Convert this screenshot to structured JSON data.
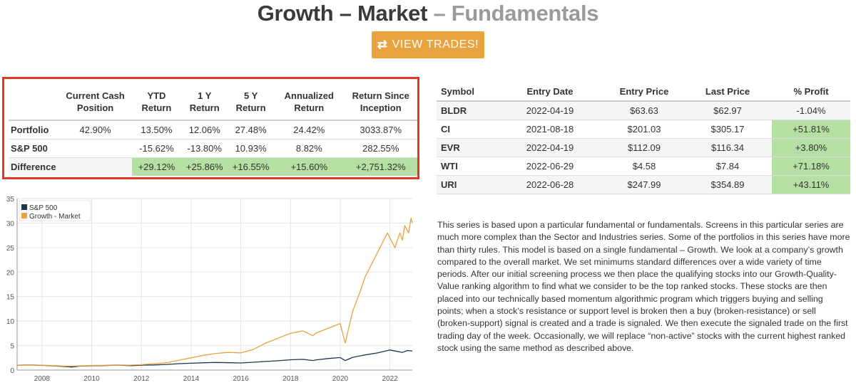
{
  "header": {
    "title_main": "Growth – Market",
    "title_sep": " – ",
    "title_sub": "Fundamentals"
  },
  "view_trades": {
    "icon": "⇄",
    "label": "VIEW TRADES!"
  },
  "stats_table": {
    "columns": [
      "",
      "Current Cash Position",
      "YTD Return",
      "1 Y Return",
      "5 Y Return",
      "Annualized Return",
      "Return Since Inception"
    ],
    "rows": [
      {
        "label": "Portfolio",
        "cells": [
          "42.90%",
          "13.50%",
          "12.06%",
          "27.48%",
          "24.42%",
          "3033.87%"
        ]
      },
      {
        "label": "S&P 500",
        "cells": [
          "",
          "-15.62%",
          "-13.80%",
          "10.93%",
          "8.82%",
          "282.55%"
        ]
      },
      {
        "label": "Difference",
        "cells": [
          "",
          "+29.12%",
          "+25.86%",
          "+16.55%",
          "+15.60%",
          "+2,751.32%"
        ]
      }
    ]
  },
  "trades_table": {
    "columns": [
      "Symbol",
      "Entry Date",
      "Entry Price",
      "Last Price",
      "% Profit"
    ],
    "rows": [
      {
        "symbol": "BLDR",
        "entry_date": "2022-04-19",
        "entry_price": "$63.63",
        "last_price": "$62.97",
        "profit": "-1.04%",
        "positive": false
      },
      {
        "symbol": "CI",
        "entry_date": "2021-08-18",
        "entry_price": "$201.03",
        "last_price": "$305.17",
        "profit": "+51.81%",
        "positive": true
      },
      {
        "symbol": "EVR",
        "entry_date": "2022-04-19",
        "entry_price": "$112.09",
        "last_price": "$116.34",
        "profit": "+3.80%",
        "positive": true
      },
      {
        "symbol": "WTI",
        "entry_date": "2022-06-29",
        "entry_price": "$4.58",
        "last_price": "$7.84",
        "profit": "+71.18%",
        "positive": true
      },
      {
        "symbol": "URI",
        "entry_date": "2022-06-28",
        "entry_price": "$247.99",
        "last_price": "$354.89",
        "profit": "+43.11%",
        "positive": true
      }
    ]
  },
  "description": "This series is based upon a particular fundamental or fundamentals. Screens in this particular series are much more complex than the Sector and Industries series. Some of the portfolios in this series have more than thirty rules. This model is based on a single fundamental – Growth. We look at a company’s growth compared to the overall market. We set minimums standard differences over a wide variety of time periods. After our initial screening process we then place the qualifying stocks into our Growth-Quality-Value ranking algorithm to find what we consider to be the top ranked stocks. These stocks are then placed into our technically based momentum algorithmic program which triggers buying and selling points; when a stock’s resistance or support level is broken then a buy (broken-resistance) or sell (broken-support) signal is created and a trade is signaled. We then execute the signaled trade on the first trading day of the week. Occasionally, we will replace “non-active” stocks with the current highest ranked stock using the same method as described above.",
  "colors": {
    "accent": "#e8a23e",
    "highlight_border": "#e03a25",
    "positive_bg": "#b6dfa4",
    "sp500_line": "#1f3450",
    "growth_line": "#e8a23e"
  },
  "chart_data": {
    "type": "line",
    "ylim": [
      0,
      35
    ],
    "yticks": [
      0,
      5,
      10,
      15,
      20,
      25,
      30,
      35
    ],
    "xlim": [
      2007,
      2022.9
    ],
    "xticks": [
      2008,
      2010,
      2012,
      2014,
      2016,
      2018,
      2020,
      2022
    ],
    "grid": true,
    "legend_position": "top-left",
    "series": [
      {
        "name": "S&P 500",
        "color": "#1f3450",
        "points": [
          [
            2007.0,
            1.0
          ],
          [
            2007.5,
            1.05
          ],
          [
            2008.0,
            0.98
          ],
          [
            2008.5,
            0.85
          ],
          [
            2009.0,
            0.7
          ],
          [
            2009.2,
            0.62
          ],
          [
            2009.5,
            0.8
          ],
          [
            2010.0,
            0.9
          ],
          [
            2010.5,
            0.92
          ],
          [
            2011.0,
            1.02
          ],
          [
            2011.6,
            0.9
          ],
          [
            2012.0,
            1.0
          ],
          [
            2012.5,
            1.05
          ],
          [
            2013.0,
            1.15
          ],
          [
            2013.5,
            1.3
          ],
          [
            2014.0,
            1.4
          ],
          [
            2014.5,
            1.5
          ],
          [
            2015.0,
            1.55
          ],
          [
            2015.6,
            1.5
          ],
          [
            2016.0,
            1.45
          ],
          [
            2016.5,
            1.6
          ],
          [
            2017.0,
            1.75
          ],
          [
            2017.5,
            1.9
          ],
          [
            2018.0,
            2.1
          ],
          [
            2018.5,
            2.2
          ],
          [
            2018.9,
            1.95
          ],
          [
            2019.0,
            2.05
          ],
          [
            2019.5,
            2.35
          ],
          [
            2020.0,
            2.55
          ],
          [
            2020.2,
            1.95
          ],
          [
            2020.5,
            2.6
          ],
          [
            2021.0,
            3.1
          ],
          [
            2021.5,
            3.5
          ],
          [
            2022.0,
            4.1
          ],
          [
            2022.3,
            3.8
          ],
          [
            2022.5,
            3.6
          ],
          [
            2022.7,
            4.0
          ],
          [
            2022.9,
            3.9
          ]
        ]
      },
      {
        "name": "Growth - Market",
        "color": "#e8a23e",
        "points": [
          [
            2007.0,
            1.0
          ],
          [
            2007.5,
            1.05
          ],
          [
            2008.0,
            1.0
          ],
          [
            2008.5,
            0.9
          ],
          [
            2009.0,
            0.8
          ],
          [
            2009.5,
            0.85
          ],
          [
            2010.0,
            0.95
          ],
          [
            2010.5,
            0.98
          ],
          [
            2011.0,
            1.05
          ],
          [
            2011.5,
            1.0
          ],
          [
            2012.0,
            1.1
          ],
          [
            2012.5,
            1.3
          ],
          [
            2013.0,
            1.5
          ],
          [
            2013.5,
            2.0
          ],
          [
            2014.0,
            2.5
          ],
          [
            2014.5,
            3.0
          ],
          [
            2015.0,
            3.4
          ],
          [
            2015.5,
            3.6
          ],
          [
            2016.0,
            3.5
          ],
          [
            2016.5,
            4.2
          ],
          [
            2017.0,
            5.5
          ],
          [
            2017.5,
            6.5
          ],
          [
            2018.0,
            7.5
          ],
          [
            2018.5,
            8.0
          ],
          [
            2018.9,
            7.0
          ],
          [
            2019.0,
            7.5
          ],
          [
            2019.5,
            8.5
          ],
          [
            2020.0,
            9.5
          ],
          [
            2020.2,
            5.5
          ],
          [
            2020.5,
            12.0
          ],
          [
            2020.8,
            16.0
          ],
          [
            2021.0,
            19.0
          ],
          [
            2021.3,
            22.0
          ],
          [
            2021.6,
            25.0
          ],
          [
            2021.9,
            28.0
          ],
          [
            2022.0,
            27.0
          ],
          [
            2022.2,
            25.0
          ],
          [
            2022.4,
            28.0
          ],
          [
            2022.5,
            26.5
          ],
          [
            2022.6,
            29.5
          ],
          [
            2022.75,
            28.0
          ],
          [
            2022.85,
            31.0
          ],
          [
            2022.9,
            30.0
          ]
        ]
      }
    ]
  }
}
